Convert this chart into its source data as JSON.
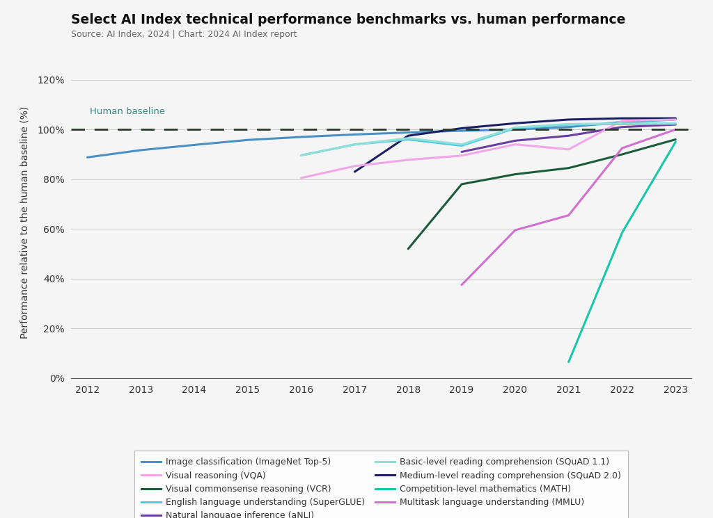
{
  "title": "Select AI Index technical performance benchmarks vs. human performance",
  "source": "Source: AI Index, 2024 | Chart: 2024 AI Index report",
  "ylabel": "Performance relative to the human baseline (%)",
  "human_baseline_label": "Human baseline",
  "xlim": [
    2012,
    2023
  ],
  "ylim": [
    0,
    1.25
  ],
  "yticks": [
    0,
    0.2,
    0.4,
    0.6,
    0.8,
    1.0,
    1.2
  ],
  "ytick_labels": [
    "0%",
    "20%",
    "40%",
    "60%",
    "80%",
    "100%",
    "120%"
  ],
  "xticks": [
    2012,
    2013,
    2014,
    2015,
    2016,
    2017,
    2018,
    2019,
    2020,
    2021,
    2022,
    2023
  ],
  "series": [
    {
      "name": "Image classification (ImageNet Top-5)",
      "color": "#4a90c4",
      "linewidth": 2.2,
      "x": [
        2012,
        2013,
        2014,
        2015,
        2016,
        2017,
        2018,
        2019,
        2020,
        2021,
        2022,
        2023
      ],
      "y": [
        0.888,
        0.917,
        0.938,
        0.958,
        0.97,
        0.98,
        0.988,
        0.995,
        1.0,
        1.01,
        1.03,
        1.04
      ]
    },
    {
      "name": "Visual commonsense reasoning (VCR)",
      "color": "#1a5c3a",
      "linewidth": 2.2,
      "x": [
        2018,
        2019,
        2020,
        2021,
        2022,
        2023
      ],
      "y": [
        0.52,
        0.78,
        0.82,
        0.845,
        0.9,
        0.96
      ]
    },
    {
      "name": "Natural language inference (aNLI)",
      "color": "#6b3fa0",
      "linewidth": 2.2,
      "x": [
        2019,
        2020,
        2021,
        2022,
        2023
      ],
      "y": [
        0.91,
        0.955,
        0.975,
        1.01,
        1.02
      ]
    },
    {
      "name": "Medium-level reading comprehension (SQuAD 2.0)",
      "color": "#1a2060",
      "linewidth": 2.2,
      "x": [
        2017,
        2018,
        2019,
        2020,
        2021,
        2022,
        2023
      ],
      "y": [
        0.83,
        0.975,
        1.005,
        1.025,
        1.04,
        1.045,
        1.045
      ]
    },
    {
      "name": "Multitask language understanding (MMLU)",
      "color": "#d070d0",
      "linewidth": 2.2,
      "x": [
        2019,
        2020,
        2021,
        2022,
        2023
      ],
      "y": [
        0.375,
        0.595,
        0.655,
        0.925,
        1.0
      ]
    },
    {
      "name": "Visual reasoning (VQA)",
      "color": "#f0a8e8",
      "linewidth": 2.2,
      "x": [
        2016,
        2017,
        2018,
        2019,
        2020,
        2021,
        2022,
        2023
      ],
      "y": [
        0.805,
        0.853,
        0.878,
        0.895,
        0.94,
        0.92,
        1.035,
        1.04
      ]
    },
    {
      "name": "English language understanding (SuperGLUE)",
      "color": "#50c8e8",
      "linewidth": 2.2,
      "x": [
        2016,
        2017,
        2018,
        2019,
        2020,
        2021,
        2022,
        2023
      ],
      "y": [
        0.896,
        0.94,
        0.96,
        0.935,
        1.005,
        1.02,
        1.022,
        1.023
      ]
    },
    {
      "name": "Basic-level reading comprehension (SQuAD 1.1)",
      "color": "#90e0d8",
      "linewidth": 2.2,
      "x": [
        2016,
        2017,
        2018,
        2019,
        2020,
        2021,
        2022,
        2023
      ],
      "y": [
        0.896,
        0.94,
        0.965,
        0.94,
        1.008,
        1.022,
        1.024,
        1.025
      ]
    },
    {
      "name": "Competition-level mathematics (MATH)",
      "color": "#18c8a8",
      "linewidth": 2.2,
      "x": [
        2021,
        2022,
        2023
      ],
      "y": [
        0.065,
        0.585,
        0.95
      ]
    }
  ],
  "legend_order": [
    "Image classification (ImageNet Top-5)",
    "Visual reasoning (VQA)",
    "Visual commonsense reasoning (VCR)",
    "English language understanding (SuperGLUE)",
    "Natural language inference (aNLI)",
    "Basic-level reading comprehension (SQuAD 1.1)",
    "Medium-level reading comprehension (SQuAD 2.0)",
    "Competition-level mathematics (MATH)",
    "Multitask language understanding (MMLU)"
  ],
  "background_color": "#f5f5f5",
  "grid_color": "#cccccc",
  "dashed_line_color": "#2a3a2a",
  "dashed_line_y": 1.0,
  "human_baseline_color": "#3a8a7a"
}
